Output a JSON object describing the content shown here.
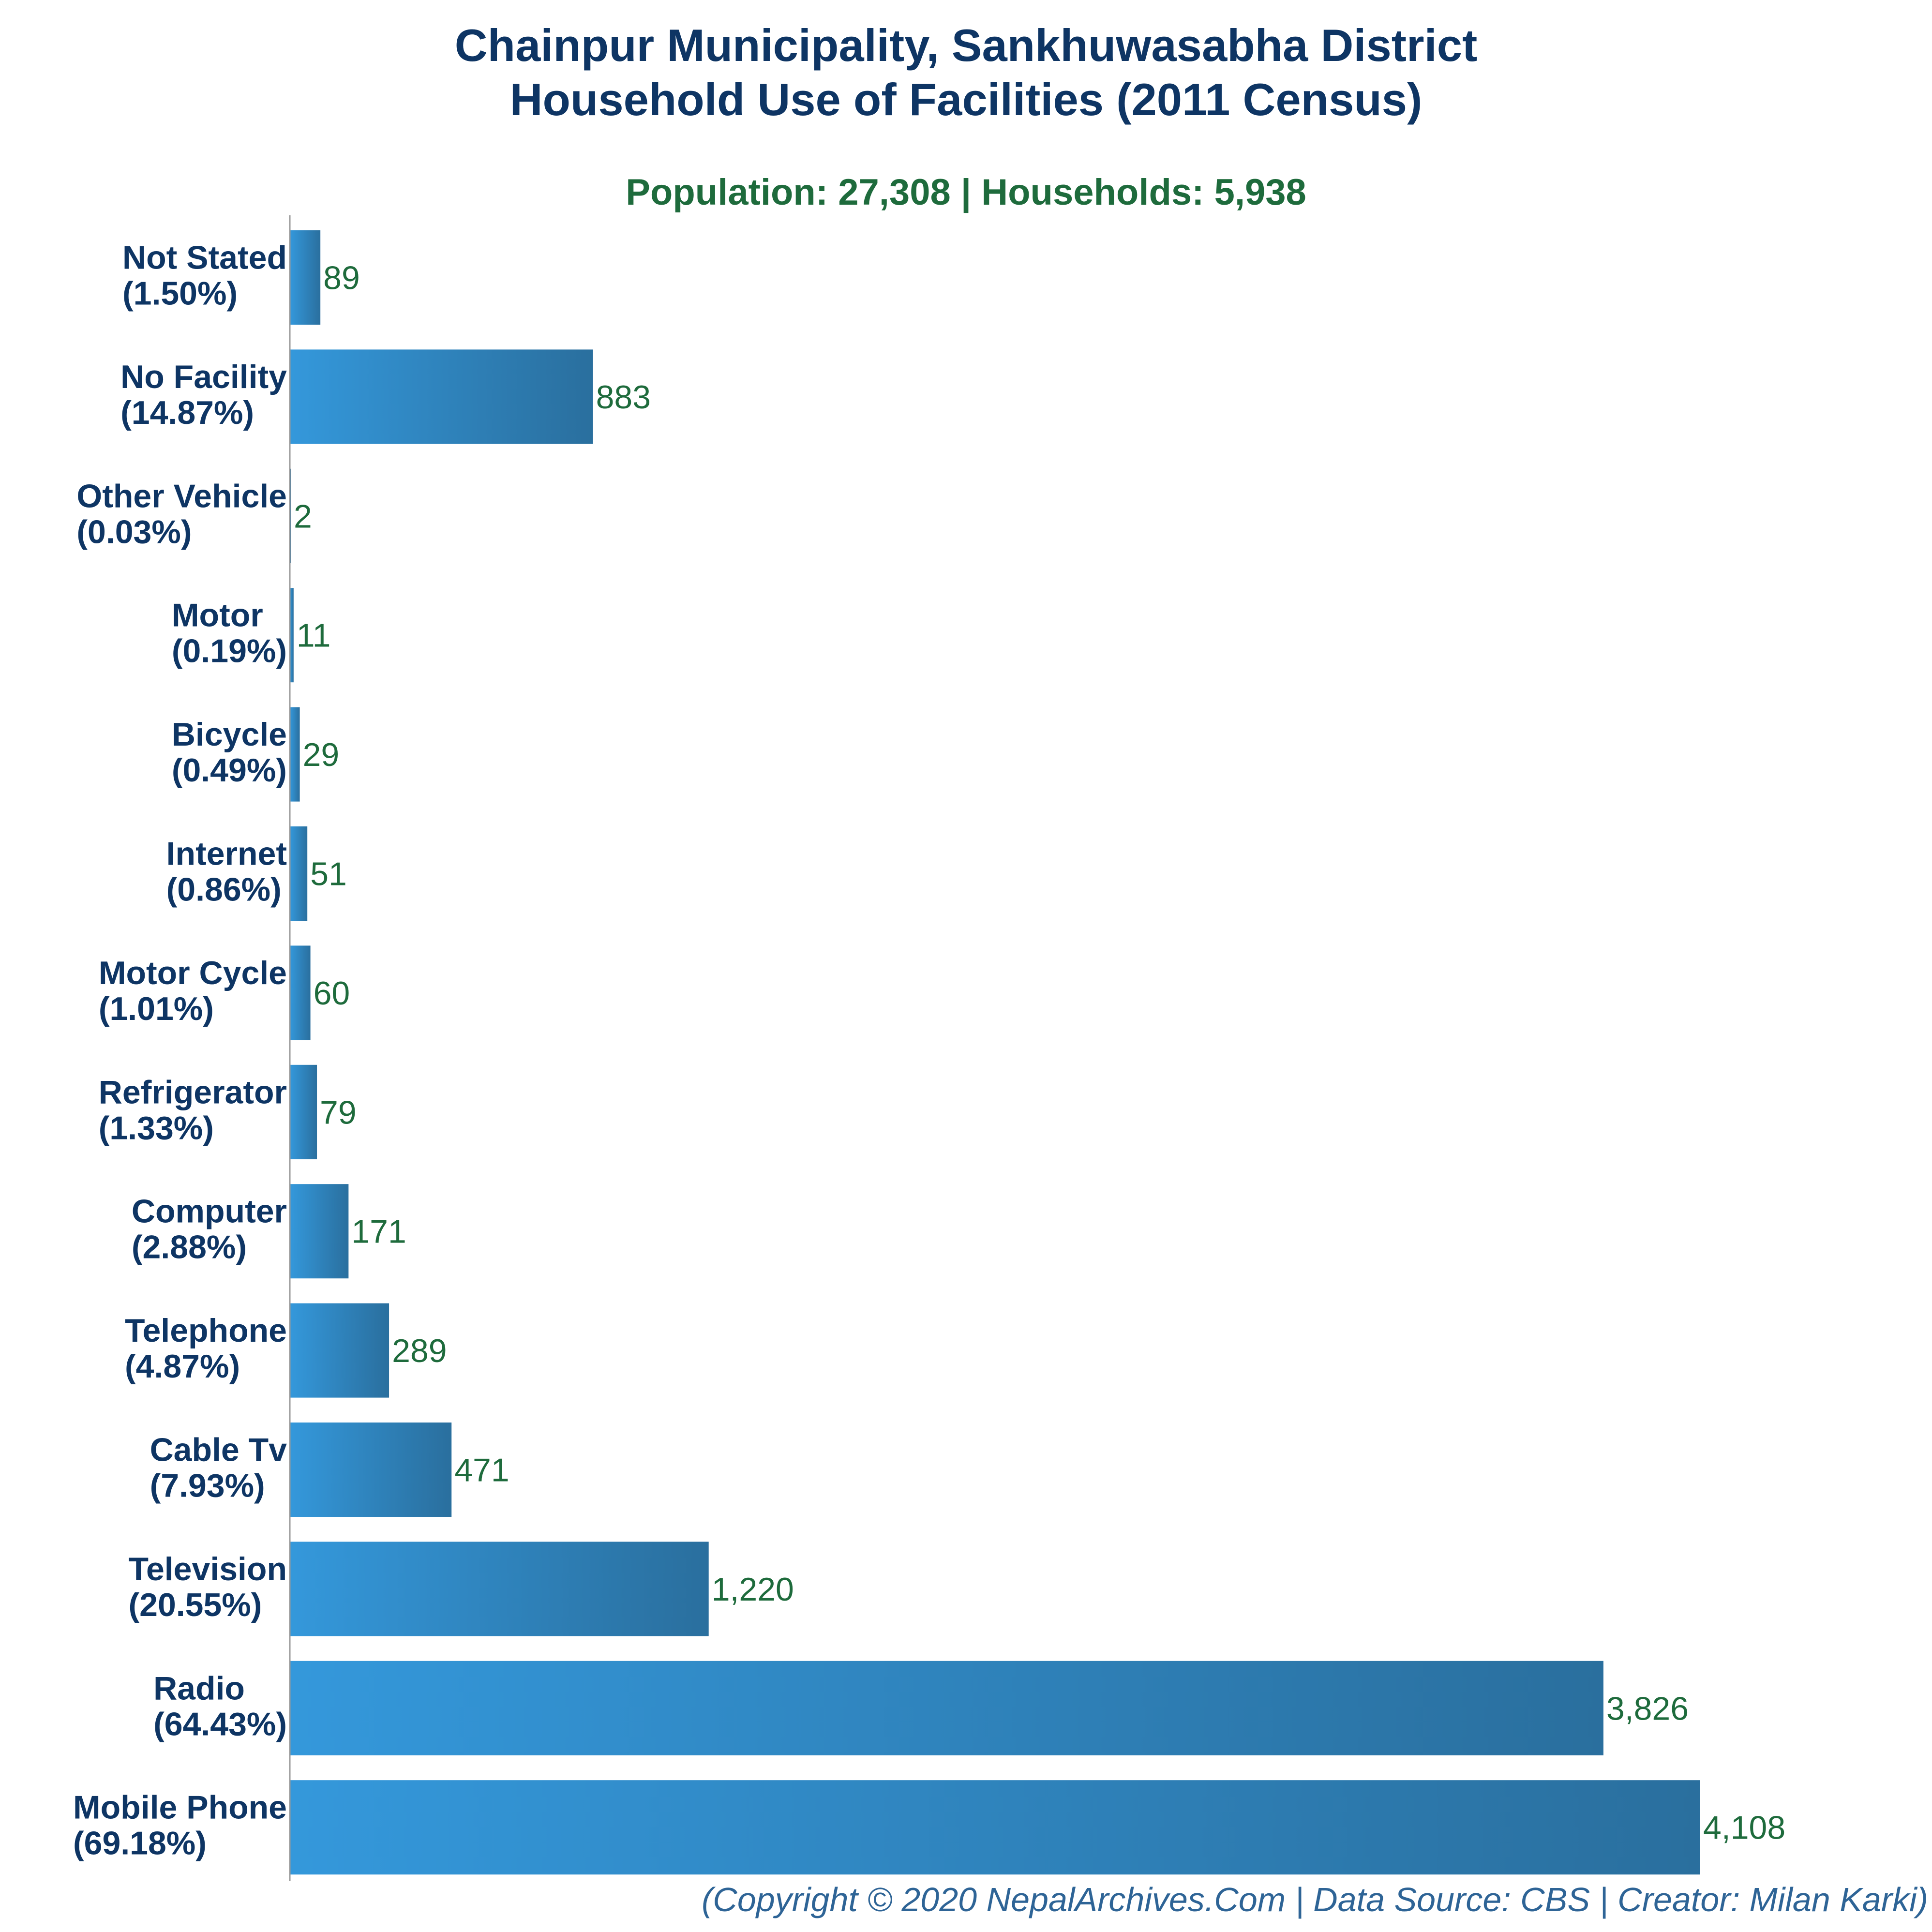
{
  "title_line1": "Chainpur Municipality, Sankhuwasabha District",
  "title_line2": "Household Use of Facilities (2011 Census)",
  "subtitle": "Population: 27,308 | Households: 5,938",
  "footer": "(Copyright © 2020 NepalArchives.Com | Data Source: CBS | Creator: Milan Karki)",
  "colors": {
    "bar_light": "#3498db",
    "bar_dark": "#2a6f9e",
    "title": "#0e3564",
    "value_label": "#1e6b3c",
    "footer": "#2e6496",
    "axis": "#9a9a9a"
  },
  "chart_data": {
    "type": "bar",
    "orientation": "horizontal",
    "categories": [
      "Not Stated",
      "No Facility",
      "Other Vehicle",
      "Motor",
      "Bicycle",
      "Internet",
      "Motor Cycle",
      "Refrigerator",
      "Computer",
      "Telephone",
      "Cable Tv",
      "Television",
      "Radio",
      "Mobile Phone"
    ],
    "percent_labels": [
      "(1.50%)",
      "(14.87%)",
      "(0.03%)",
      "(0.19%)",
      "(0.49%)",
      "(0.86%)",
      "(1.01%)",
      "(1.33%)",
      "(2.88%)",
      "(4.87%)",
      "(7.93%)",
      "(20.55%)",
      "(64.43%)",
      "(69.18%)"
    ],
    "values": [
      89,
      883,
      2,
      11,
      29,
      51,
      60,
      79,
      171,
      289,
      471,
      1220,
      3826,
      4108
    ],
    "value_labels": [
      "89",
      "883",
      "2",
      "11",
      "29",
      "51",
      "60",
      "79",
      "171",
      "289",
      "471",
      "1,220",
      "3,826",
      "4,108"
    ],
    "xlim": [
      0,
      4108
    ],
    "grid": false,
    "legend": "none"
  }
}
